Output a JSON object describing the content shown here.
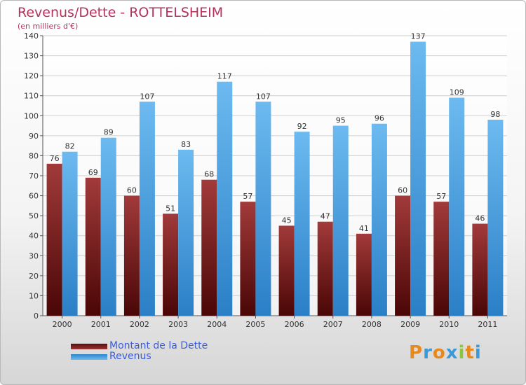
{
  "chart_data": {
    "type": "bar",
    "title": "Revenus/Dette - ROTTELSHEIM",
    "subtitle": "(en milliers d'€)",
    "categories": [
      "2000",
      "2001",
      "2002",
      "2003",
      "2004",
      "2005",
      "2006",
      "2007",
      "2008",
      "2009",
      "2010",
      "2011"
    ],
    "series": [
      {
        "name": "Montant de la Dette",
        "values": [
          76,
          69,
          60,
          51,
          68,
          57,
          45,
          47,
          41,
          60,
          57,
          46
        ],
        "color": "#7a1a1a"
      },
      {
        "name": "Revenus",
        "values": [
          82,
          89,
          107,
          83,
          117,
          107,
          92,
          95,
          96,
          137,
          109,
          98
        ],
        "color": "#4aa3e6"
      }
    ],
    "ylim": [
      0,
      140
    ],
    "yticks": [
      0,
      10,
      20,
      30,
      40,
      50,
      60,
      70,
      80,
      90,
      100,
      110,
      120,
      130,
      140
    ],
    "grid": true,
    "legend": "bottom-left"
  },
  "logo": {
    "text": "Proxiti",
    "colors": [
      "#e8891d",
      "#3a9ad9",
      "#e8891d",
      "#3a9ad9",
      "#8cc63f",
      "#e8891d",
      "#3a9ad9"
    ]
  }
}
